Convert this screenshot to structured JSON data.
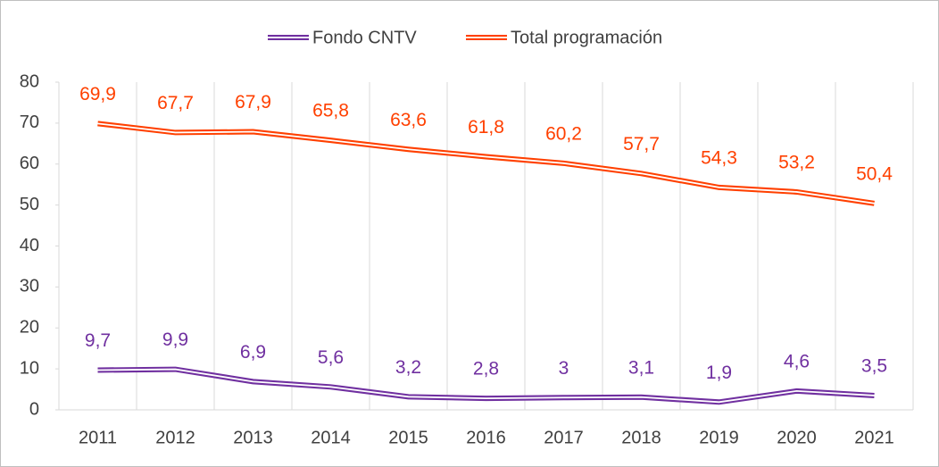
{
  "chart_data": {
    "type": "line",
    "categories": [
      "2011",
      "2012",
      "2013",
      "2014",
      "2015",
      "2016",
      "2017",
      "2018",
      "2019",
      "2020",
      "2021"
    ],
    "series": [
      {
        "name": "Fondo CNTV",
        "color": "#7030a0",
        "values": [
          9.7,
          9.9,
          6.9,
          5.6,
          3.2,
          2.8,
          3,
          3.1,
          1.9,
          4.6,
          3.5
        ],
        "value_labels": [
          "9,7",
          "9,9",
          "6,9",
          "5,6",
          "3,2",
          "2,8",
          "3",
          "3,1",
          "1,9",
          "4,6",
          "3,5"
        ]
      },
      {
        "name": "Total programación",
        "color": "#ff4000",
        "values": [
          69.9,
          67.7,
          67.9,
          65.8,
          63.6,
          61.8,
          60.2,
          57.7,
          54.3,
          53.2,
          50.4
        ],
        "value_labels": [
          "69,9",
          "67,7",
          "67,9",
          "65,8",
          "63,6",
          "61,8",
          "60,2",
          "57,7",
          "54,3",
          "53,2",
          "50,4"
        ]
      }
    ],
    "ylim": [
      0,
      80
    ],
    "yticks": [
      0,
      10,
      20,
      30,
      40,
      50,
      60,
      70,
      80
    ],
    "grid": "x",
    "legend": "top"
  }
}
